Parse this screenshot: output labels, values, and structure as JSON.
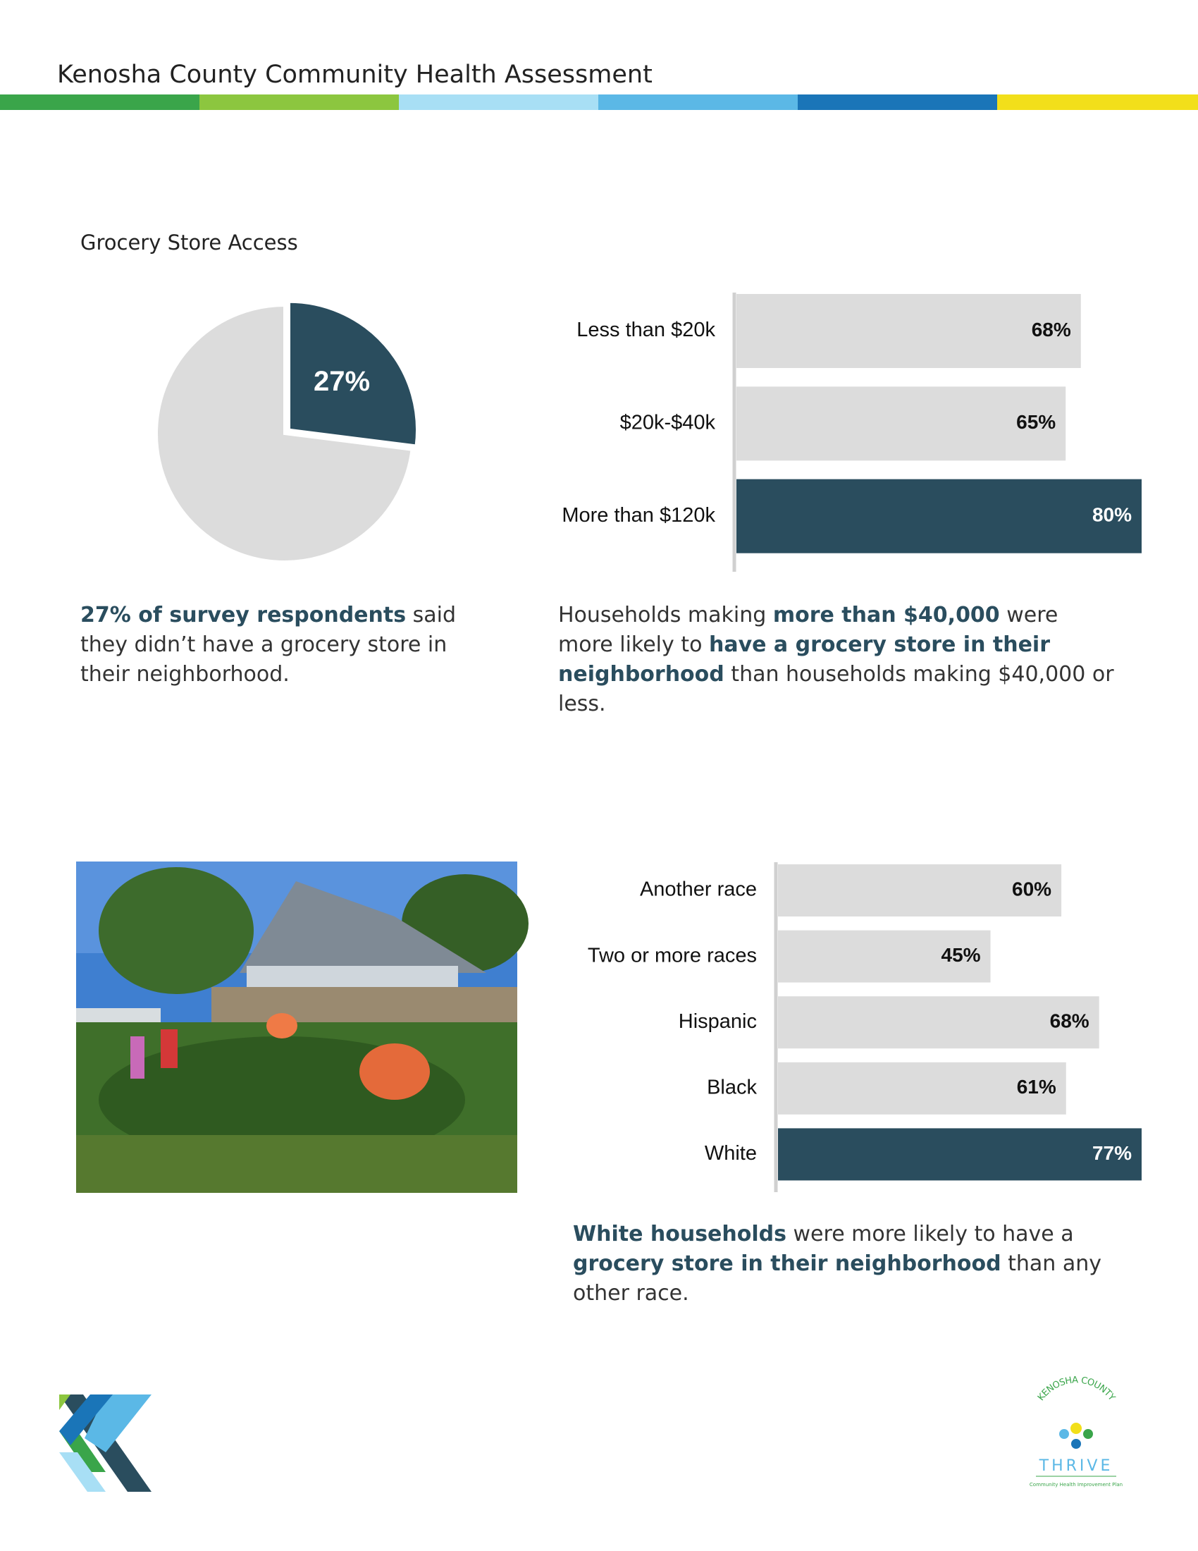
{
  "header": {
    "title": "Kenosha County Community Health Assessment"
  },
  "section_title": "Grocery Store Access",
  "chart_data": [
    {
      "type": "pie",
      "values": [
        27,
        73
      ],
      "value_labels": [
        "27%",
        null
      ],
      "colors": [
        "#2a4d5e",
        "#dcdcdc"
      ]
    },
    {
      "type": "bar",
      "orientation": "horizontal",
      "categories": [
        "Less than $20k",
        "$20k-$40k",
        "More than $120k"
      ],
      "values": [
        68,
        65,
        80
      ],
      "value_labels": [
        "68%",
        "65%",
        "80%"
      ],
      "colors": [
        "#dcdcdc",
        "#dcdcdc",
        "#2a4d5e"
      ],
      "xlim": [
        0,
        80
      ]
    },
    {
      "type": "bar",
      "orientation": "horizontal",
      "categories": [
        "Another race",
        "Two or more races",
        "Hispanic",
        "Black",
        "White"
      ],
      "values": [
        60,
        45,
        68,
        61,
        77
      ],
      "value_labels": [
        "60%",
        "45%",
        "68%",
        "61%",
        "77%"
      ],
      "colors": [
        "#dcdcdc",
        "#dcdcdc",
        "#dcdcdc",
        "#dcdcdc",
        "#2a4d5e"
      ],
      "xlim": [
        0,
        77
      ]
    }
  ],
  "captions": [
    {
      "segments": [
        {
          "text": "27% of survey respondents",
          "bold": true
        },
        {
          "text": " said they didn’t have a grocery store in their neighborhood.",
          "bold": false
        }
      ]
    },
    {
      "segments": [
        {
          "text": "Households making ",
          "bold": false
        },
        {
          "text": "more than $40,000",
          "bold": true
        },
        {
          "text": " were more likely to ",
          "bold": false
        },
        {
          "text": "have a grocery store in their neighborhood",
          "bold": true
        },
        {
          "text": " than households making $40,000 or less.",
          "bold": false
        }
      ]
    },
    {
      "segments": [
        {
          "text": "White households",
          "bold": true
        },
        {
          "text": " were more likely to have a ",
          "bold": false
        },
        {
          "text": "grocery store in their neighborhood",
          "bold": true
        },
        {
          "text": " than any other race.",
          "bold": false
        }
      ]
    }
  ],
  "footer": {
    "logo_arc": "KENOSHA COUNTY",
    "logo_word": "THRIVE",
    "logo_sub": "Community Health Improvement Plan"
  }
}
